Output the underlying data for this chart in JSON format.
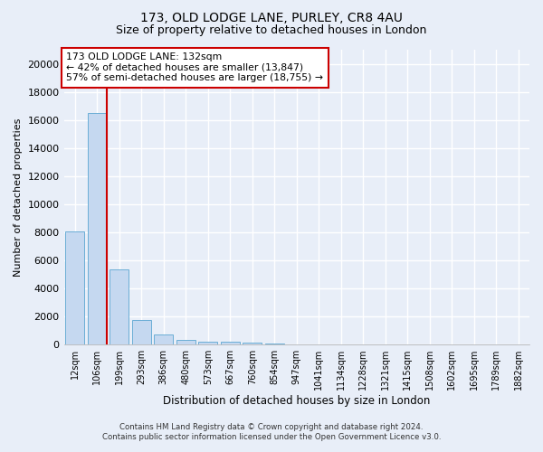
{
  "title1": "173, OLD LODGE LANE, PURLEY, CR8 4AU",
  "title2": "Size of property relative to detached houses in London",
  "xlabel": "Distribution of detached houses by size in London",
  "ylabel": "Number of detached properties",
  "bar_labels": [
    "12sqm",
    "106sqm",
    "199sqm",
    "293sqm",
    "386sqm",
    "480sqm",
    "573sqm",
    "667sqm",
    "760sqm",
    "854sqm",
    "947sqm",
    "1041sqm",
    "1134sqm",
    "1228sqm",
    "1321sqm",
    "1415sqm",
    "1508sqm",
    "1602sqm",
    "1695sqm",
    "1789sqm",
    "1882sqm"
  ],
  "bar_values": [
    8050,
    16500,
    5350,
    1750,
    700,
    320,
    220,
    170,
    150,
    100,
    0,
    0,
    0,
    0,
    0,
    0,
    0,
    0,
    0,
    0,
    0
  ],
  "bar_color": "#c5d8f0",
  "bar_edge_color": "#6baed6",
  "highlight_color": "#cc0000",
  "annotation_text": "173 OLD LODGE LANE: 132sqm\n← 42% of detached houses are smaller (13,847)\n57% of semi-detached houses are larger (18,755) →",
  "annotation_box_facecolor": "#ffffff",
  "annotation_box_edge_color": "#cc0000",
  "ylim": [
    0,
    21000
  ],
  "yticks": [
    0,
    2000,
    4000,
    6000,
    8000,
    10000,
    12000,
    14000,
    16000,
    18000,
    20000
  ],
  "footer1": "Contains HM Land Registry data © Crown copyright and database right 2024.",
  "footer2": "Contains public sector information licensed under the Open Government Licence v3.0.",
  "bg_color": "#e8eef8",
  "grid_color": "#ffffff",
  "title1_fontsize": 10,
  "title2_fontsize": 9,
  "annotation_fontsize": 7.8,
  "ylabel_fontsize": 8,
  "xlabel_fontsize": 8.5
}
